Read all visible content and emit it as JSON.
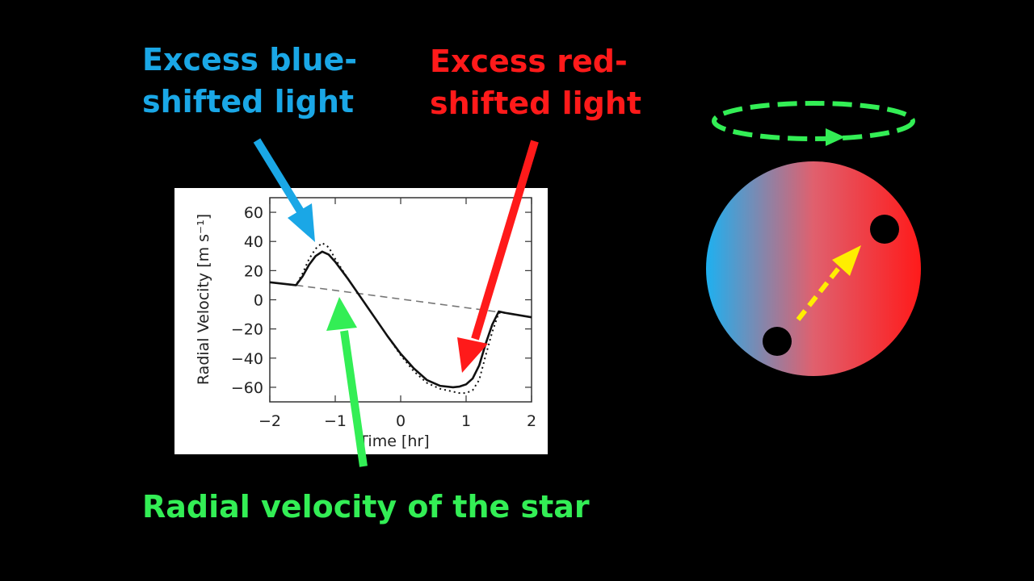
{
  "captions": {
    "blue": [
      "Excess blue-",
      "shifted light"
    ],
    "red": [
      "Excess red-",
      "shifted light"
    ],
    "green": "Radial velocity of the star"
  },
  "colors": {
    "background": "#000000",
    "blue": "#1aa7e6",
    "red": "#ff1a1a",
    "green": "#33ee55",
    "yellow": "#ffee00",
    "star_left": "#1eb0f0",
    "star_mid": "#e0606e",
    "star_right": "#ff1a1a"
  },
  "icons": {
    "rotation": "dashed-ellipse-arrow-icon",
    "star": "rotating-star-disk-icon",
    "planet_start": "planet-shadow-dot",
    "planet_end": "planet-shadow-dot",
    "transit_path": "dashed-arrow-icon"
  },
  "chart_data": {
    "type": "line",
    "xlabel": "Time [hr]",
    "ylabel": "Radial Velocity [m s⁻¹]",
    "xlim": [
      -2,
      2
    ],
    "ylim": [
      -70,
      70
    ],
    "xticks": [
      -2,
      -1,
      0,
      1,
      2
    ],
    "yticks": [
      60,
      40,
      20,
      0,
      -20,
      -40,
      -60
    ],
    "series": [
      {
        "style": "solid",
        "x": [
          -2.0,
          -1.6,
          -1.5,
          -1.4,
          -1.3,
          -1.2,
          -1.1,
          -1.0,
          -0.8,
          -0.6,
          -0.4,
          -0.2,
          0.0,
          0.2,
          0.4,
          0.6,
          0.8,
          0.9,
          1.0,
          1.1,
          1.2,
          1.3,
          1.4,
          1.5,
          1.6,
          2.0
        ],
        "y": [
          12,
          10,
          16,
          24,
          30,
          33,
          31,
          26,
          14,
          1,
          -12,
          -25,
          -37,
          -47,
          -55,
          -59,
          -60,
          -59.5,
          -58,
          -54,
          -45,
          -30,
          -17,
          -8,
          -9,
          -12
        ]
      },
      {
        "style": "dotted",
        "x": [
          -2.0,
          -1.6,
          -1.5,
          -1.4,
          -1.3,
          -1.2,
          -1.1,
          -1.0,
          -0.8,
          -0.6,
          -0.4,
          -0.2,
          0.0,
          0.2,
          0.4,
          0.6,
          0.8,
          0.9,
          1.0,
          1.1,
          1.2,
          1.3,
          1.4,
          1.5,
          1.6,
          2.0
        ],
        "y": [
          12,
          10,
          18,
          28,
          35,
          39,
          36,
          28,
          14,
          1,
          -12,
          -25,
          -38,
          -49,
          -57,
          -61,
          -63,
          -64,
          -64,
          -62,
          -55,
          -38,
          -22,
          -9,
          -9,
          -12
        ]
      },
      {
        "style": "dashed",
        "x": [
          -1.6,
          1.6
        ],
        "y": [
          10,
          -9
        ]
      }
    ]
  }
}
